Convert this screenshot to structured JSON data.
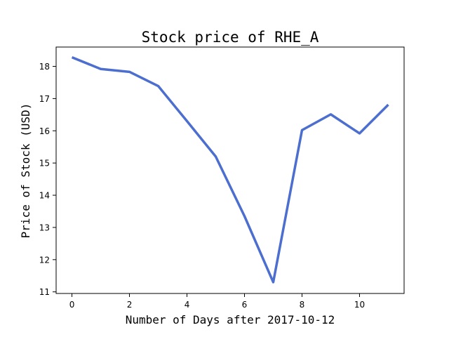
{
  "chart_data": {
    "type": "line",
    "title": "Stock price of RHE_A",
    "xlabel": "Number of Days after 2017-10-12",
    "ylabel": "Price of Stock (USD)",
    "xlim": [
      -0.55,
      11.55
    ],
    "ylim": [
      10.95,
      18.6
    ],
    "xticks": [
      0,
      2,
      4,
      6,
      8,
      10
    ],
    "yticks": [
      11,
      12,
      13,
      14,
      15,
      16,
      17,
      18
    ],
    "grid": false,
    "legend": "none",
    "series": [
      {
        "color": "#4c6fcf",
        "x": [
          0,
          1,
          2,
          3,
          4,
          5,
          6,
          7,
          8,
          9,
          10,
          11
        ],
        "y": [
          18.28,
          17.92,
          17.83,
          17.39,
          16.3,
          15.2,
          13.35,
          11.3,
          16.02,
          16.51,
          15.92,
          16.81
        ]
      }
    ]
  }
}
